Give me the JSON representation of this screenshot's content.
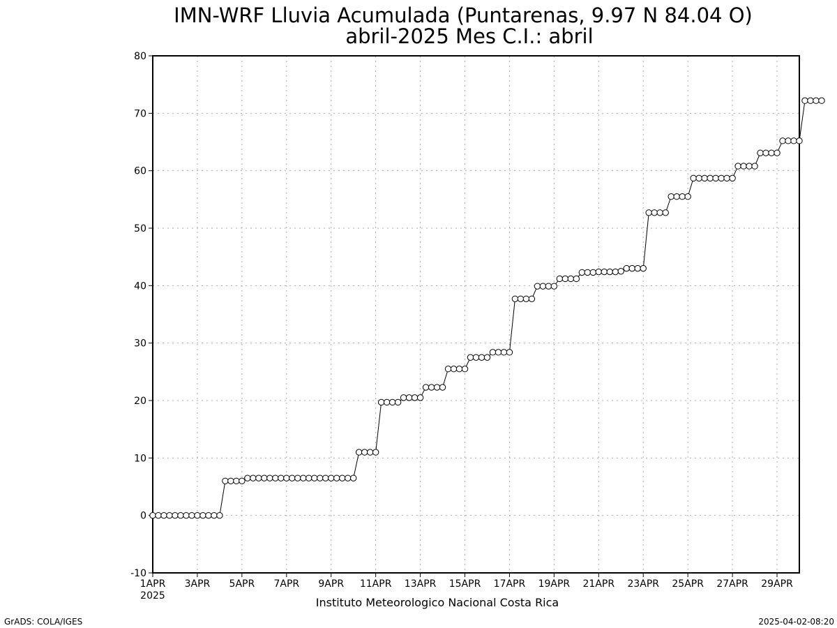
{
  "chart_data": {
    "type": "line",
    "title": "IMN-WRF  Lluvia Acumulada (Puntarenas, 9.97  N 84.04  O)",
    "subtitle": "abril-2025 Mes C.I.: abril",
    "xlabel": "",
    "ylabel": "",
    "ylim": [
      -10,
      80
    ],
    "yticks": [
      -10,
      0,
      10,
      20,
      30,
      40,
      50,
      60,
      70,
      80
    ],
    "xlim": [
      0,
      29
    ],
    "xticks": [
      {
        "day": 0,
        "label": "1APR"
      },
      {
        "day": 2,
        "label": "3APR"
      },
      {
        "day": 4,
        "label": "5APR"
      },
      {
        "day": 6,
        "label": "7APR"
      },
      {
        "day": 8,
        "label": "9APR"
      },
      {
        "day": 10,
        "label": "11APR"
      },
      {
        "day": 12,
        "label": "13APR"
      },
      {
        "day": 14,
        "label": "15APR"
      },
      {
        "day": 16,
        "label": "17APR"
      },
      {
        "day": 18,
        "label": "19APR"
      },
      {
        "day": 20,
        "label": "21APR"
      },
      {
        "day": 22,
        "label": "23APR"
      },
      {
        "day": 24,
        "label": "25APR"
      },
      {
        "day": 26,
        "label": "27APR"
      },
      {
        "day": 28,
        "label": "29APR"
      }
    ],
    "year_label": "2025",
    "grid": true,
    "series": [
      {
        "marker": "open-circle",
        "color": "#000000",
        "step_days": 0.25,
        "values": [
          0,
          0,
          0,
          0,
          0,
          0,
          0,
          0,
          0,
          0,
          0,
          0,
          0,
          6,
          6,
          6,
          6,
          6.5,
          6.5,
          6.5,
          6.5,
          6.5,
          6.5,
          6.5,
          6.5,
          6.5,
          6.5,
          6.5,
          6.5,
          6.5,
          6.5,
          6.5,
          6.5,
          6.5,
          6.5,
          6.5,
          6.5,
          11,
          11,
          11,
          11,
          19.7,
          19.7,
          19.7,
          19.7,
          20.5,
          20.5,
          20.5,
          20.5,
          22.3,
          22.3,
          22.3,
          22.3,
          25.5,
          25.5,
          25.5,
          25.5,
          27.5,
          27.5,
          27.5,
          27.5,
          28.4,
          28.4,
          28.4,
          28.4,
          37.7,
          37.7,
          37.7,
          37.7,
          39.9,
          39.9,
          39.9,
          39.9,
          41.2,
          41.2,
          41.2,
          41.2,
          42.3,
          42.3,
          42.3,
          42.4,
          42.4,
          42.4,
          42.4,
          42.5,
          43,
          43,
          43,
          43,
          52.7,
          52.7,
          52.7,
          52.7,
          55.5,
          55.5,
          55.5,
          55.5,
          58.7,
          58.7,
          58.7,
          58.7,
          58.7,
          58.7,
          58.7,
          58.7,
          60.8,
          60.8,
          60.8,
          60.8,
          63.1,
          63.1,
          63.1,
          63.1,
          65.2,
          65.2,
          65.2,
          65.2,
          72.2,
          72.2,
          72.2,
          72.2
        ]
      }
    ]
  },
  "footer": {
    "institution": "Instituto Meteorologico Nacional Costa Rica",
    "software": "GrADS: COLA/IGES",
    "timestamp": "2025-04-02-08:20"
  }
}
